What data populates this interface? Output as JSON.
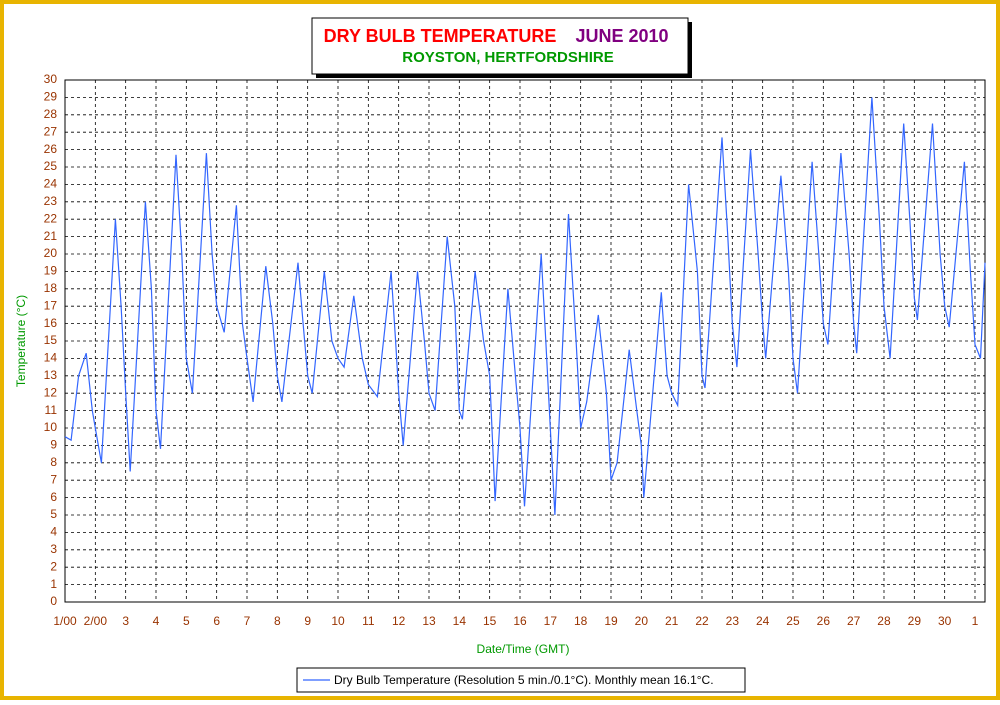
{
  "chart_data": {
    "type": "line",
    "title": "DRY BULB TEMPERATURE",
    "title_period": "JUNE 2010",
    "subtitle": "ROYSTON, HERTFORDSHIRE",
    "xlabel": "Date/Time (GMT)",
    "ylabel": "Temperature (°C)",
    "grid": true,
    "legend": "bottom",
    "xlim": [
      1,
      31.33
    ],
    "ylim": [
      0,
      30
    ],
    "yticks": [
      0,
      1,
      2,
      3,
      4,
      5,
      6,
      7,
      8,
      9,
      10,
      11,
      12,
      13,
      14,
      15,
      16,
      17,
      18,
      19,
      20,
      21,
      22,
      23,
      24,
      25,
      26,
      27,
      28,
      29,
      30
    ],
    "xticks": [
      {
        "value": 1,
        "label": "1/00"
      },
      {
        "value": 2,
        "label": "2/00"
      },
      3,
      4,
      5,
      6,
      7,
      8,
      9,
      10,
      11,
      12,
      13,
      14,
      15,
      16,
      17,
      18,
      19,
      20,
      21,
      22,
      23,
      24,
      25,
      26,
      27,
      28,
      29,
      30,
      {
        "value": 31,
        "label": "1"
      }
    ],
    "x": [
      1.0,
      1.2,
      1.45,
      1.7,
      1.9,
      2.0,
      2.2,
      2.66,
      2.85,
      3.0,
      3.15,
      3.65,
      3.85,
      4.0,
      4.15,
      4.66,
      4.85,
      5.0,
      5.2,
      5.66,
      5.85,
      6.0,
      6.25,
      6.65,
      6.85,
      7.0,
      7.2,
      7.62,
      7.85,
      8.0,
      8.15,
      8.68,
      8.85,
      9.0,
      9.15,
      9.55,
      9.8,
      10.0,
      10.2,
      10.52,
      10.8,
      11.0,
      11.3,
      11.75,
      11.9,
      12.0,
      12.15,
      12.62,
      12.85,
      13.0,
      13.2,
      13.6,
      13.85,
      14.0,
      14.1,
      14.52,
      14.8,
      15.0,
      15.18,
      15.6,
      15.85,
      16.0,
      16.15,
      16.7,
      16.85,
      17.0,
      17.15,
      17.6,
      17.85,
      18.0,
      18.2,
      18.58,
      18.85,
      19.0,
      19.2,
      19.6,
      19.85,
      20.0,
      20.08,
      20.66,
      20.85,
      21.0,
      21.2,
      21.56,
      21.85,
      22.0,
      22.1,
      22.66,
      22.85,
      23.0,
      23.15,
      23.6,
      23.85,
      24.0,
      24.1,
      24.6,
      24.85,
      25.0,
      25.15,
      25.63,
      25.85,
      26.0,
      26.15,
      26.58,
      26.85,
      27.0,
      27.1,
      27.6,
      27.85,
      28.0,
      28.2,
      28.65,
      28.85,
      29.0,
      29.1,
      29.6,
      29.85,
      30.0,
      30.15,
      30.65,
      30.85,
      31.0,
      31.18,
      31.33
    ],
    "series": [
      {
        "name": "Dry Bulb Temperature (Resolution 5 min./0.1°C). Monthly mean 16.1°C.",
        "color": "#3366ff",
        "values": [
          9.5,
          9.3,
          13,
          14.3,
          11,
          10,
          8,
          22,
          17,
          12,
          7.5,
          23,
          18,
          11,
          8.8,
          25.7,
          20,
          14,
          12,
          25.8,
          20,
          17,
          15.5,
          22.8,
          16,
          14,
          11.5,
          19.3,
          16,
          13,
          11.5,
          19.5,
          16,
          13,
          12,
          19,
          15,
          14,
          13.5,
          17.6,
          14,
          12.5,
          11.8,
          19,
          15,
          12,
          9,
          19,
          15,
          12,
          11,
          21,
          17,
          11,
          10.5,
          19,
          15,
          13,
          5.8,
          18,
          13,
          10,
          5.5,
          20,
          15,
          10,
          5,
          22.3,
          15,
          10,
          11.5,
          16.5,
          12,
          7,
          8,
          14.5,
          11,
          9,
          6,
          17.8,
          13,
          12,
          11.3,
          24,
          19,
          13,
          12.3,
          26.7,
          21,
          16,
          13.5,
          26,
          20,
          16,
          14,
          24.5,
          19,
          14,
          12,
          25.3,
          20,
          16,
          14.8,
          25.8,
          20,
          16,
          14.3,
          29,
          22,
          17,
          14,
          27.5,
          22,
          17.5,
          16.2,
          27.5,
          20,
          17,
          15.8,
          25.3,
          19,
          14.8,
          14,
          19.5
        ]
      }
    ]
  }
}
